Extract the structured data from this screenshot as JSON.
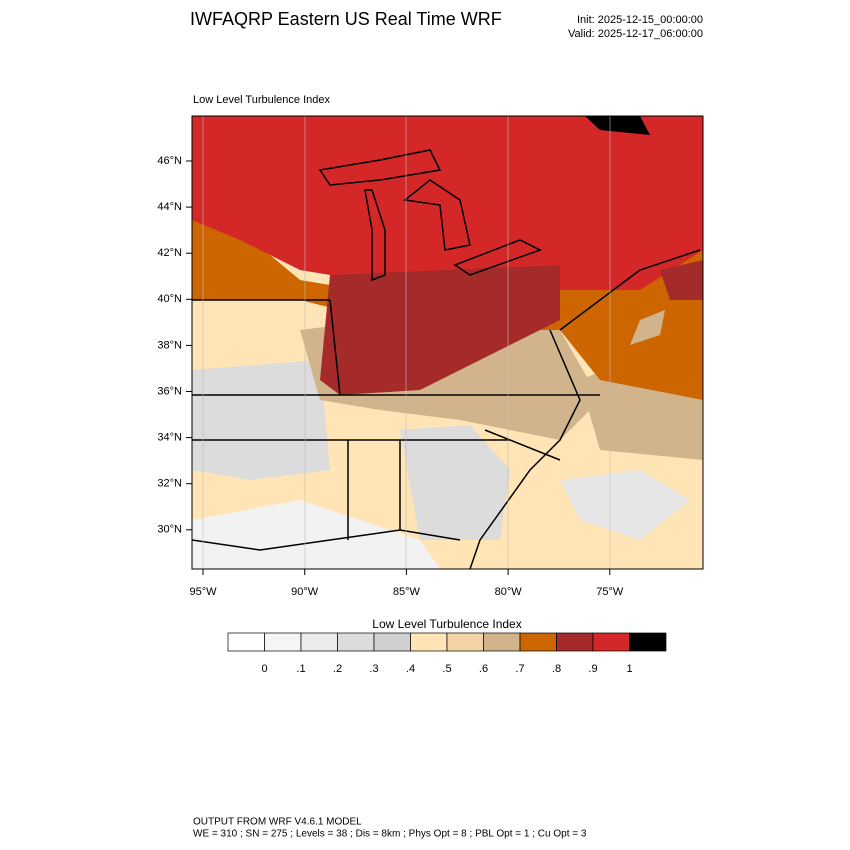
{
  "header": {
    "title": "IWFAQRP Eastern US Real Time WRF",
    "init": "Init: 2025-12-15_00:00:00",
    "valid": "Valid: 2025-12-17_06:00:00"
  },
  "map": {
    "subtitle": "Low Level Turbulence Index",
    "lat_labels": [
      "46°N",
      "44°N",
      "42°N",
      "40°N",
      "38°N",
      "36°N",
      "34°N",
      "32°N",
      "30°N"
    ],
    "lon_labels": [
      "95°W",
      "90°W",
      "85°W",
      "80°W",
      "75°W"
    ]
  },
  "colorbar": {
    "title": "Low Level Turbulence Index",
    "labels": [
      "0",
      ".1",
      ".2",
      ".3",
      ".4",
      ".5",
      ".6",
      ".7",
      ".8",
      ".9",
      "1"
    ],
    "colors": [
      "#ffffff",
      "#f5f5f5",
      "#ebebeb",
      "#dcdcdc",
      "#d0d0d0",
      "#ffe4b5",
      "#f5d3a6",
      "#d2b48c",
      "#cd6600",
      "#a52a2a",
      "#d42828",
      "#000000"
    ]
  },
  "footer": {
    "line1": "OUTPUT FROM WRF V4.6.1 MODEL",
    "line2": "WE = 310 ; SN = 275 ; Levels = 38 ; Dis = 8km ; Phys Opt = 8 ; PBL Opt = 1 ; Cu Opt = 3"
  }
}
